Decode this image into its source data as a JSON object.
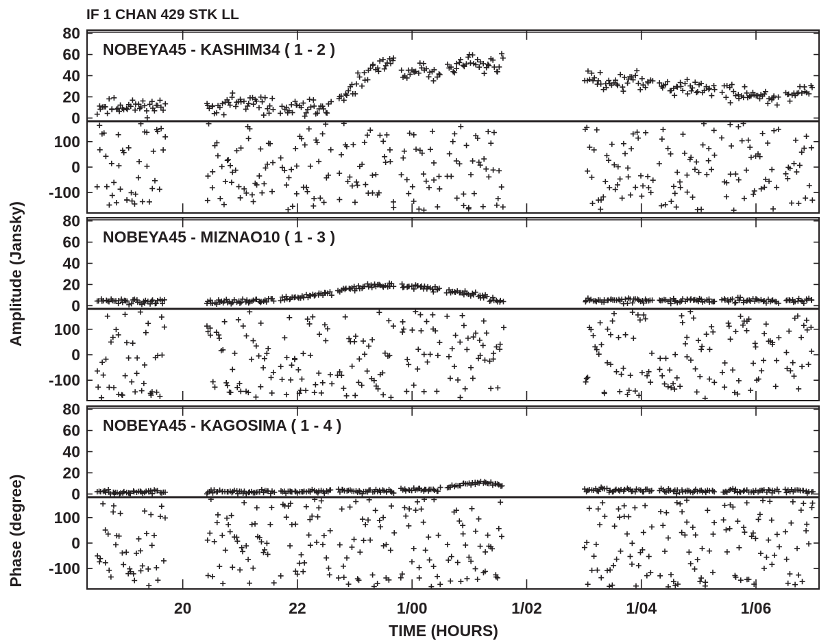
{
  "header": {
    "text": "IF 1   CHAN 429   STK LL"
  },
  "y_axis_labels": {
    "amplitude": "Amplitude (Jansky)",
    "phase": "Phase (degree)"
  },
  "x_axis_label": "TIME (HOURS)",
  "chart_data": {
    "type": "scatter",
    "marker": "+",
    "color": "#231f20",
    "x_unit": "hours",
    "xlim": [
      18.33,
      31.1
    ],
    "x_ticks": [
      {
        "value": 20,
        "label": "20"
      },
      {
        "value": 22,
        "label": "22"
      },
      {
        "value": 24,
        "label": "1/00"
      },
      {
        "value": 26,
        "label": "1/02"
      },
      {
        "value": 28,
        "label": "1/04"
      },
      {
        "value": 30,
        "label": "1/06"
      }
    ],
    "amp_ylim": [
      -3,
      83
    ],
    "amp_ticks": [
      0,
      20,
      40,
      60,
      80
    ],
    "phase_ylim": [
      -180,
      180
    ],
    "phase_ticks": [
      -100,
      0,
      100
    ],
    "scan_windows": [
      [
        18.5,
        19.7
      ],
      [
        20.4,
        21.6
      ],
      [
        21.7,
        22.6
      ],
      [
        22.7,
        23.7
      ],
      [
        23.8,
        24.5
      ],
      [
        24.6,
        25.6
      ],
      [
        27.0,
        28.2
      ],
      [
        28.3,
        29.3
      ],
      [
        29.4,
        30.4
      ],
      [
        30.5,
        31.0
      ]
    ],
    "baselines": [
      {
        "title": "NOBEYA45 - KASHIM34 ( 1 - 2 )",
        "amp_profile": [
          [
            18.5,
            10
          ],
          [
            19.0,
            11
          ],
          [
            19.5,
            11
          ],
          [
            20.4,
            10
          ],
          [
            20.9,
            15
          ],
          [
            21.5,
            12
          ],
          [
            21.7,
            8
          ],
          [
            22.1,
            9
          ],
          [
            22.6,
            12
          ],
          [
            22.7,
            14
          ],
          [
            23.0,
            28
          ],
          [
            23.3,
            45
          ],
          [
            23.7,
            52
          ],
          [
            23.8,
            42
          ],
          [
            24.2,
            45
          ],
          [
            24.5,
            40
          ],
          [
            24.6,
            45
          ],
          [
            25.0,
            55
          ],
          [
            25.3,
            48
          ],
          [
            25.6,
            55
          ],
          [
            27.0,
            38
          ],
          [
            27.5,
            34
          ],
          [
            28.2,
            35
          ],
          [
            28.3,
            33
          ],
          [
            28.8,
            28
          ],
          [
            29.3,
            30
          ],
          [
            29.4,
            24
          ],
          [
            29.9,
            22
          ],
          [
            30.4,
            18
          ],
          [
            30.5,
            22
          ],
          [
            31.0,
            24
          ]
        ],
        "amp_scatter": 5,
        "amp_seed": 11,
        "phase_seed": 101
      },
      {
        "title": "NOBEYA45 - MIZNAO10 ( 1 - 3 )",
        "amp_profile": [
          [
            18.5,
            4
          ],
          [
            19.7,
            4
          ],
          [
            20.4,
            4
          ],
          [
            21.0,
            4
          ],
          [
            21.6,
            5
          ],
          [
            21.7,
            6
          ],
          [
            22.2,
            9
          ],
          [
            22.6,
            12
          ],
          [
            22.7,
            14
          ],
          [
            23.2,
            18
          ],
          [
            23.7,
            20
          ],
          [
            23.8,
            18
          ],
          [
            24.5,
            16
          ],
          [
            24.6,
            14
          ],
          [
            25.1,
            10
          ],
          [
            25.6,
            4
          ],
          [
            27.0,
            5
          ],
          [
            28.2,
            5
          ],
          [
            28.3,
            5
          ],
          [
            29.3,
            5
          ],
          [
            29.4,
            5
          ],
          [
            30.4,
            5
          ],
          [
            30.5,
            5
          ],
          [
            31.0,
            5
          ]
        ],
        "amp_scatter": 1.6,
        "amp_seed": 22,
        "phase_seed": 202
      },
      {
        "title": "NOBEYA45 - KAGOSIMA ( 1 - 4 )",
        "amp_profile": [
          [
            18.5,
            2
          ],
          [
            19.7,
            2
          ],
          [
            20.4,
            2
          ],
          [
            21.6,
            2
          ],
          [
            21.7,
            2
          ],
          [
            22.6,
            2
          ],
          [
            22.7,
            3
          ],
          [
            23.7,
            3
          ],
          [
            23.8,
            4
          ],
          [
            24.5,
            4
          ],
          [
            24.6,
            6
          ],
          [
            25.0,
            10
          ],
          [
            25.3,
            11
          ],
          [
            25.6,
            6
          ],
          [
            27.0,
            4
          ],
          [
            28.2,
            3
          ],
          [
            28.3,
            3
          ],
          [
            29.3,
            3
          ],
          [
            29.4,
            3
          ],
          [
            30.4,
            3
          ],
          [
            30.5,
            3
          ],
          [
            31.0,
            3
          ]
        ],
        "amp_scatter": 1.3,
        "amp_seed": 33,
        "phase_seed": 303
      }
    ]
  }
}
